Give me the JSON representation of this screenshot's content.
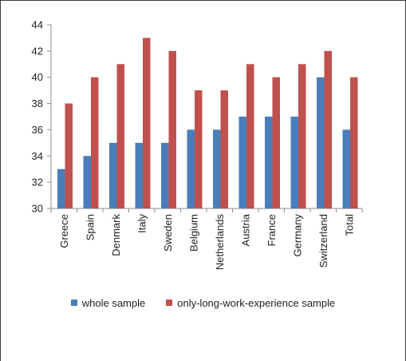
{
  "chart_data": {
    "type": "bar",
    "title": "",
    "xlabel": "",
    "ylabel": "",
    "ylim": [
      30,
      44
    ],
    "yticks": [
      30,
      32,
      34,
      36,
      38,
      40,
      42,
      44
    ],
    "grid": false,
    "legend_position": "bottom",
    "categories": [
      "Greece",
      "Spain",
      "Denmark",
      "Italy",
      "Sweden",
      "Belgium",
      "Netherlands",
      "Austria",
      "France",
      "Germany",
      "Switzerland",
      "Total"
    ],
    "series": [
      {
        "name": "whole sample",
        "color": "#4a7ebb",
        "values": [
          33,
          34,
          35,
          35,
          35,
          36,
          36,
          37,
          37,
          37,
          40,
          36
        ]
      },
      {
        "name": "only-long-work-experience sample",
        "color": "#c0504d",
        "values": [
          38,
          40,
          41,
          43,
          42,
          39,
          39,
          41,
          40,
          41,
          42,
          40
        ]
      }
    ]
  }
}
